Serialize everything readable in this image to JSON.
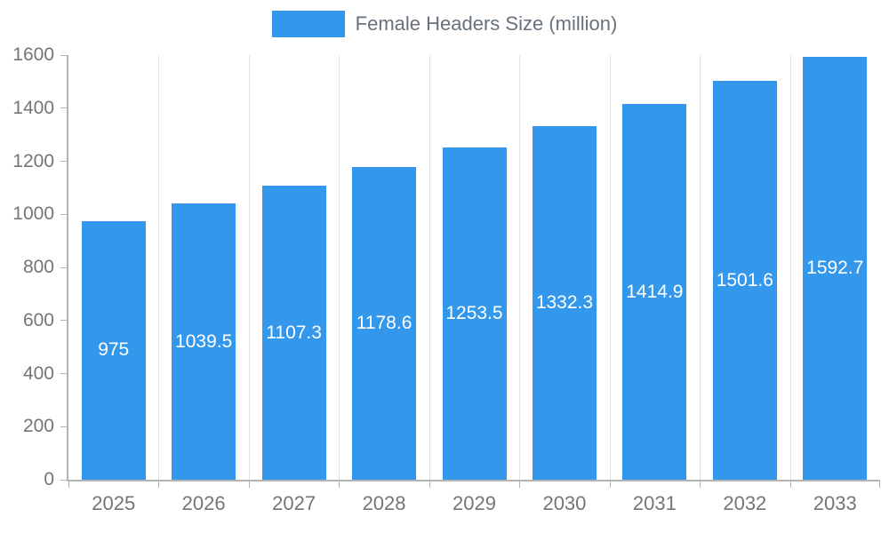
{
  "legend": {
    "label": "Female Headers Size (million)",
    "swatch_color": "#3398EC"
  },
  "chart_data": {
    "type": "bar",
    "title": "Female Headers Size (million)",
    "categories": [
      "2025",
      "2026",
      "2027",
      "2028",
      "2029",
      "2030",
      "2031",
      "2032",
      "2033"
    ],
    "values": [
      975,
      1039.5,
      1107.3,
      1178.6,
      1253.5,
      1332.3,
      1414.9,
      1501.6,
      1592.7
    ],
    "value_labels": [
      "975",
      "1039.5",
      "1107.3",
      "1178.6",
      "1253.5",
      "1332.3",
      "1414.9",
      "1501.6",
      "1592.7"
    ],
    "xlabel": "",
    "ylabel": "",
    "ylim": [
      0,
      1600
    ],
    "ytick_step": 200,
    "ytick_labels": [
      "0",
      "200",
      "400",
      "600",
      "800",
      "1000",
      "1200",
      "1400",
      "1600"
    ],
    "bar_color": "#3398EC",
    "value_label_color": "#ffffff",
    "grid": "vertical",
    "legend_position": "top-center"
  }
}
